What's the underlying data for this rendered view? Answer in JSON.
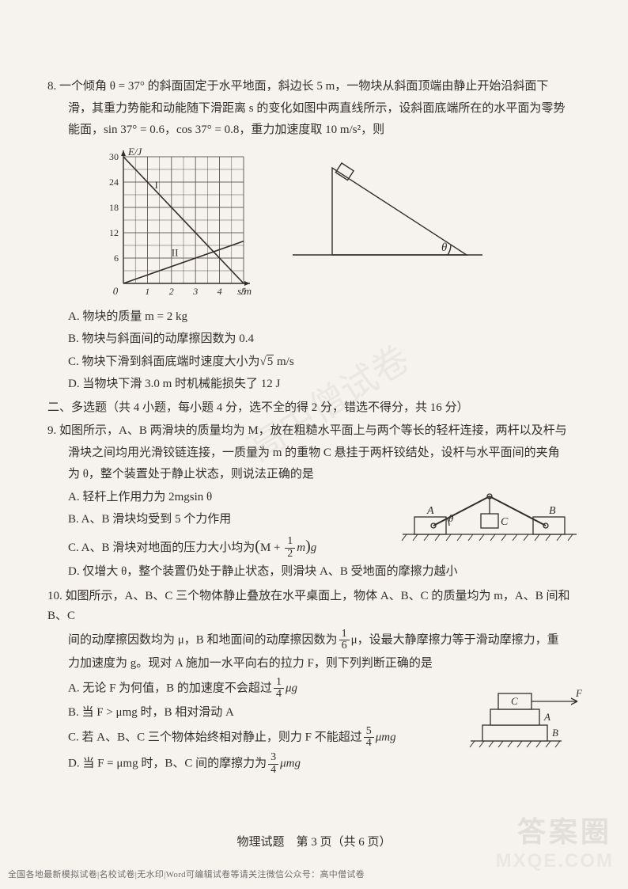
{
  "q8": {
    "line1": "8. 一个倾角 θ = 37° 的斜面固定于水平地面，斜边长 5 m，一物块从斜面顶端由静止开始沿斜面下",
    "line2": "滑，其重力势能和动能随下滑距离 s 的变化如图中两直线所示，设斜面底端所在的水平面为零势",
    "line3": "能面，sin 37° = 0.6，cos 37° = 0.8，重力加速度取 10 m/s²，则",
    "optA": "A. 物块的质量 m = 2 kg",
    "optB": "B. 物块与斜面间的动摩擦因数为 0.4",
    "optC_pre": "C. 物块下滑到斜面底端时速度大小为",
    "optC_radicand": "5",
    "optC_post": " m/s",
    "optD": "D. 当物块下滑 3.0 m 时机械能损失了 12 J",
    "chart": {
      "type": "line",
      "xlabel": "s/m",
      "ylabel": "E/J",
      "xlim": [
        0,
        5
      ],
      "ylim": [
        0,
        30
      ],
      "xticks": [
        1,
        2,
        3,
        4,
        5
      ],
      "yticks": [
        6,
        12,
        18,
        24,
        30
      ],
      "grid_color": "#555048",
      "bg_color": "#f6f3ee",
      "text_color": "#322d2a",
      "lines": [
        {
          "label": "I",
          "points": [
            [
              0,
              30
            ],
            [
              5,
              0
            ]
          ],
          "width": 1.6
        },
        {
          "label": "II",
          "points": [
            [
              0,
              0
            ],
            [
              5,
              10
            ]
          ],
          "width": 1.6
        }
      ],
      "label_positions": {
        "I": [
          1.3,
          22.5
        ],
        "II": [
          2.0,
          6.5
        ]
      }
    },
    "incline": {
      "angle_label": "θ",
      "stroke": "#322d2a"
    }
  },
  "sec2": "二、多选题（共 4 小题，每小题 4 分，选不全的得 2 分，错选不得分，共 16 分）",
  "q9": {
    "line1": "9. 如图所示，A、B 两滑块的质量均为 M，放在粗糙水平面上与两个等长的轻杆连接，两杆以及杆与",
    "line2": "滑块之间均用光滑铰链连接，一质量为 m 的重物 C 悬挂于两杆铰结处，设杆与水平面间的夹角",
    "line3": "为 θ，整个装置处于静止状态，则说法正确的是",
    "optA": "A. 轻杆上作用力为 2mgsin θ",
    "optB": "B. A、B 滑块均受到 5 个力作用",
    "optC_pre": "C. A、B 滑块对地面的压力大小均为",
    "optC_paren_l": "(",
    "optC_M": "M + ",
    "optC_num": "1",
    "optC_den": "2",
    "optC_m": "m",
    "optC_paren_r": ")",
    "optC_g": "g",
    "optD": "D. 仅增大 θ，整个装置仍处于静止状态，则滑块 A、B 受地面的摩擦力越小",
    "diagram": {
      "labelA": "A",
      "labelB": "B",
      "labelC": "C",
      "theta": "θ"
    }
  },
  "q10": {
    "line1": "10. 如图所示，A、B、C 三个物体静止叠放在水平桌面上，物体 A、B、C 的质量均为 m，A、B 间和 B、C",
    "line2_pre": "间的动摩擦因数均为 μ，B 和地面间的动摩擦因数为",
    "line2_num": "1",
    "line2_den": "6",
    "line2_post": "μ，设最大静摩擦力等于滑动摩擦力，重",
    "line3": "力加速度为 g。现对 A 施加一水平向右的拉力 F，则下列判断正确的是",
    "optA_pre": "A. 无论 F 为何值，B 的加速度不会超过",
    "optA_num": "1",
    "optA_den": "4",
    "optA_post": "μg",
    "optB": "B. 当 F > μmg 时，B 相对滑动 A",
    "optC_pre": "C. 若 A、B、C 三个物体始终相对静止，则力 F 不能超过",
    "optC_num": "5",
    "optC_den": "4",
    "optC_post": "μmg",
    "optD_pre": "D. 当 F = μmg 时，B、C 间的摩擦力为",
    "optD_num": "3",
    "optD_den": "4",
    "optD_post": "μmg",
    "diagram": {
      "labelA": "A",
      "labelB": "B",
      "labelC": "C",
      "labelF": "F"
    }
  },
  "footer": "物理试题　第 3 页（共 6 页）",
  "footer_note": "全国各地最新模拟试卷|名校试卷|无水印|Word可编辑试卷等请关注微信公众号：高中僧试卷",
  "wm_daanquan": "答案圈",
  "wm_mxqe": "MXQE.COM",
  "wm_diag": "高中僧试卷"
}
